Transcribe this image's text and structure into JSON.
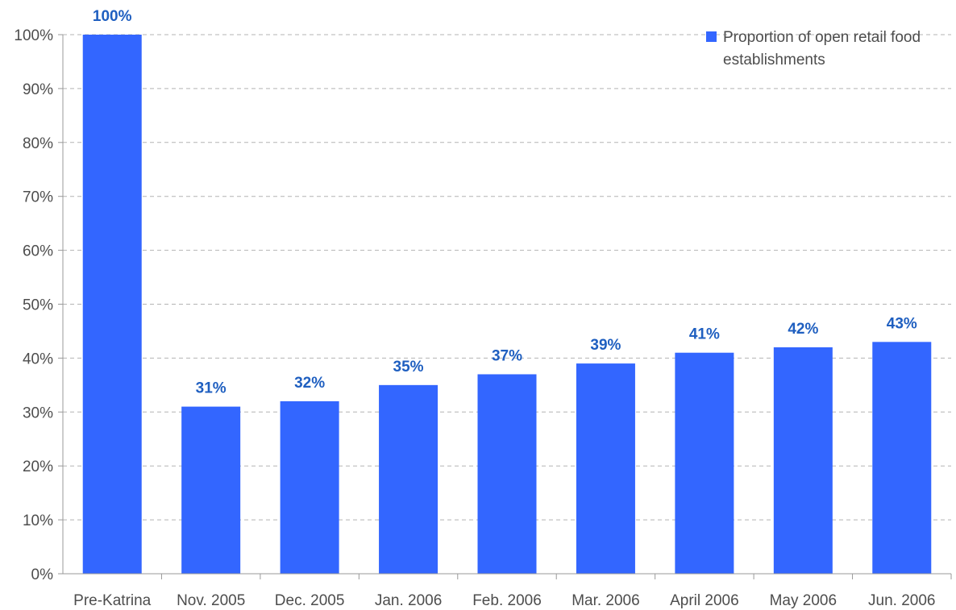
{
  "chart_data": {
    "type": "bar",
    "categories": [
      "Pre-Katrina",
      "Nov. 2005",
      "Dec. 2005",
      "Jan. 2006",
      "Feb. 2006",
      "Mar. 2006",
      "April 2006",
      "May 2006",
      "Jun. 2006"
    ],
    "series": [
      {
        "name": "Proportion of open retail food establishments",
        "values": [
          100,
          31,
          32,
          35,
          37,
          39,
          41,
          42,
          43
        ],
        "data_labels": [
          "100%",
          "31%",
          "32%",
          "35%",
          "37%",
          "39%",
          "41%",
          "42%",
          "43%"
        ],
        "color": "#3366ff"
      }
    ],
    "y_ticks": [
      "0%",
      "10%",
      "20%",
      "30%",
      "40%",
      "50%",
      "60%",
      "70%",
      "80%",
      "90%",
      "100%"
    ],
    "ylim": [
      0,
      100
    ],
    "grid": true,
    "legend_position": "top-right",
    "legend_lines": [
      "Proportion of open retail food",
      "establishments"
    ]
  },
  "colors": {
    "bar": "#3366ff",
    "data_label": "#1f5fc0",
    "grid": "#b3b3b3",
    "axis": "#999999",
    "text": "#4d4d4d"
  }
}
